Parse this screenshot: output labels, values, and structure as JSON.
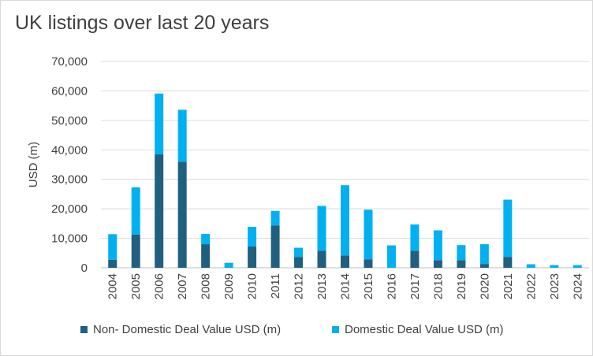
{
  "chart_data": {
    "type": "bar",
    "stacked": true,
    "title": "UK listings over last 20 years",
    "ylabel": "USD (m)",
    "xlabel": "",
    "ylim": [
      0,
      70000
    ],
    "yticks": [
      "0",
      "10,000",
      "20,000",
      "30,000",
      "40,000",
      "50,000",
      "60,000",
      "70,000"
    ],
    "grid": true,
    "legend_position": "bottom",
    "categories": [
      "2004",
      "2005",
      "2006",
      "2007",
      "2008",
      "2009",
      "2010",
      "2011",
      "2012",
      "2013",
      "2014",
      "2015",
      "2016",
      "2017",
      "2018",
      "2019",
      "2020",
      "2021",
      "2022",
      "2023",
      "2024"
    ],
    "series": [
      {
        "name": "Non- Domestic Deal Value USD (m)",
        "color": "#215f7f",
        "values": [
          2700,
          11300,
          38500,
          36000,
          8000,
          0,
          7200,
          14300,
          3700,
          5800,
          4200,
          2900,
          0,
          5800,
          2600,
          2600,
          1300,
          3700,
          0,
          0,
          0
        ]
      },
      {
        "name": "Domestic Deal Value USD (m)",
        "color": "#00b0f0",
        "values": [
          8700,
          16000,
          20600,
          17600,
          3500,
          1700,
          6700,
          5000,
          3100,
          15200,
          23800,
          16800,
          7600,
          8900,
          10100,
          5100,
          6700,
          19400,
          1200,
          900,
          900
        ]
      }
    ]
  }
}
